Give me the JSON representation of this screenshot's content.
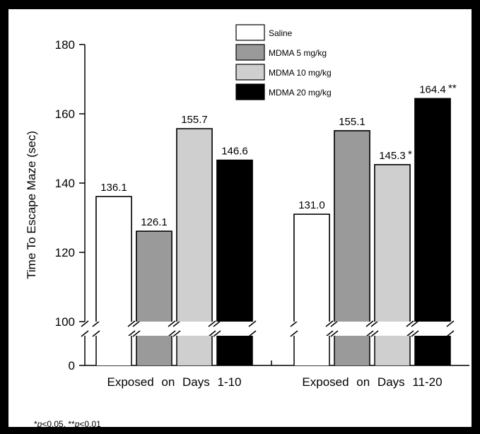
{
  "chart_data": {
    "type": "bar",
    "title": "",
    "xlabel": "",
    "ylabel": "Time To Escape Maze (sec)",
    "ylim": [
      100,
      180
    ],
    "y_ticks": [
      "180",
      "160",
      "140",
      "120",
      "100"
    ],
    "y_broken_axis_zero_label": "0",
    "grid": false,
    "legend_position": "top-right",
    "categories": [
      "Exposed on Days 1-10",
      "Exposed on Days 11-20"
    ],
    "series": [
      {
        "name": "Saline",
        "color": "#ffffff",
        "values": [
          136.1,
          131.0
        ],
        "labels": [
          "136.1",
          "131.0"
        ],
        "marks": [
          "",
          ""
        ]
      },
      {
        "name": "MDMA 5 mg/kg",
        "color": "#9a9a9a",
        "values": [
          126.1,
          155.1
        ],
        "labels": [
          "126.1",
          "155.1"
        ],
        "marks": [
          "",
          ""
        ]
      },
      {
        "name": "MDMA 10 mg/kg",
        "color": "#cfcfcf",
        "values": [
          155.7,
          145.3
        ],
        "labels": [
          "155.7",
          "145.3"
        ],
        "marks": [
          "",
          "*"
        ]
      },
      {
        "name": "MDMA 20 mg/kg",
        "color": "#000000",
        "values": [
          146.6,
          164.4
        ],
        "labels": [
          "146.6",
          "164.4"
        ],
        "marks": [
          "",
          "**"
        ]
      }
    ]
  },
  "footnote": {
    "star1": "*",
    "p1": "p",
    "t1": "<0.05, ",
    "star2": "**",
    "p2": "p",
    "t2": "<0.01"
  }
}
